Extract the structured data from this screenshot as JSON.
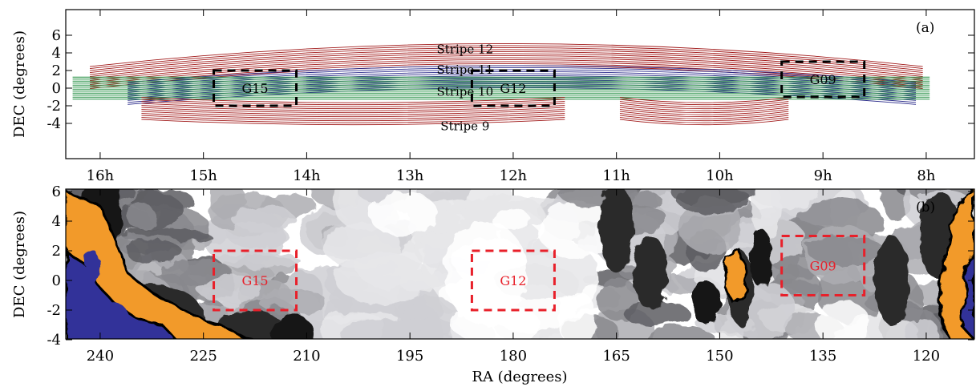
{
  "chart_data": [
    {
      "panel": "(a)",
      "type": "line",
      "ylabel": "DEC (degrees)",
      "ylim": [
        -4.6,
        6.5
      ],
      "yticks": [
        -4,
        -2,
        0,
        2,
        4,
        6
      ],
      "ra_hour_ticks": [
        {
          "label": "16h",
          "ra_deg": 240
        },
        {
          "label": "15h",
          "ra_deg": 225
        },
        {
          "label": "14h",
          "ra_deg": 210
        },
        {
          "label": "13h",
          "ra_deg": 195
        },
        {
          "label": "12h",
          "ra_deg": 180
        },
        {
          "label": "11h",
          "ra_deg": 165
        },
        {
          "label": "10h",
          "ra_deg": 150
        },
        {
          "label": "9h",
          "ra_deg": 135
        },
        {
          "label": "8h",
          "ra_deg": 120
        }
      ],
      "stripes": [
        {
          "name": "Stripe 12",
          "color": "#a01818",
          "ra_range": [
            120.5,
            241.5
          ],
          "dec_center": 3.8,
          "dec_half_width": 1.25,
          "arc_sag": 2.6
        },
        {
          "name": "Stripe 11",
          "color": "#2a2a8a",
          "ra_range": [
            121.5,
            236.0
          ],
          "dec_center": 1.3,
          "dec_half_width": 1.25,
          "arc_sag": 1.9
        },
        {
          "name": "Stripe 10",
          "color": "#1a8a3a",
          "ra_range": [
            119.5,
            244.0
          ],
          "dec_center": 0.0,
          "dec_half_width": 1.25,
          "arc_sag": 0.0
        },
        {
          "name": "Stripe 9",
          "color": "#a01818",
          "ra_ranges": [
            [
              172.5,
              234.0
            ],
            [
              140.0,
              164.5
            ]
          ],
          "dec_center": -2.9,
          "dec_half_width": 1.25,
          "arc_sag": -0.6
        }
      ],
      "fields": [
        {
          "name": "G15",
          "ra": [
            211.5,
            223.5
          ],
          "dec": [
            -2,
            2
          ],
          "color": "#000000"
        },
        {
          "name": "G12",
          "ra": [
            174.0,
            186.0
          ],
          "dec": [
            -2,
            2
          ],
          "color": "#000000"
        },
        {
          "name": "G09",
          "ra": [
            129.0,
            141.0
          ],
          "dec": [
            -1,
            3
          ],
          "color": "#000000"
        }
      ],
      "label": "(a)"
    },
    {
      "panel": "(b)",
      "type": "heatmap",
      "xlabel": "RA (degrees)",
      "ylabel": "DEC (degrees)",
      "xlim": [
        245,
        113
      ],
      "ylim": [
        -4.5,
        6.5
      ],
      "xticks": [
        240,
        225,
        210,
        195,
        180,
        165,
        150,
        135,
        120
      ],
      "yticks": [
        -4,
        -2,
        0,
        2,
        4,
        6
      ],
      "fields": [
        {
          "name": "G15",
          "ra": [
            211.5,
            223.5
          ],
          "dec": [
            -2,
            2
          ],
          "color": "#e8202a"
        },
        {
          "name": "G12",
          "ra": [
            174.0,
            186.0
          ],
          "dec": [
            -2,
            2
          ],
          "color": "#e8202a"
        },
        {
          "name": "G09",
          "ra": [
            129.0,
            141.0
          ],
          "dec": [
            -1,
            3
          ],
          "color": "#e8202a"
        }
      ],
      "contour_levels": [
        "#ffffff",
        "#e6e6e9",
        "#cfcfd4",
        "#adadb2",
        "#88888d",
        "#5d5d62",
        "#2a2a2a",
        "#121212",
        "#f29a2a",
        "#333399"
      ],
      "label": "(b)"
    }
  ]
}
